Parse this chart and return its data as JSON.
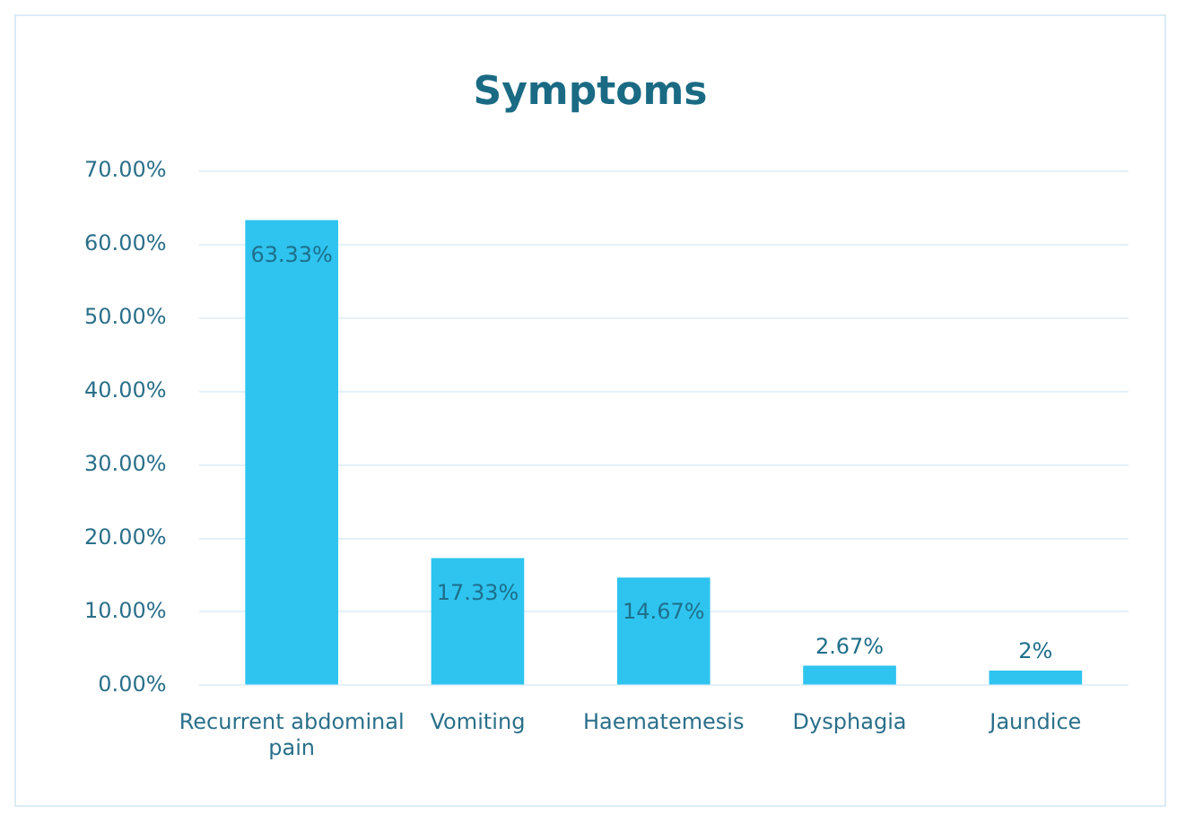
{
  "chart_data": {
    "type": "bar",
    "title": "Symptoms",
    "categories": [
      "Recurrent abdominal pain",
      "Vomiting",
      "Haematemesis",
      "Dysphagia",
      "Jaundice"
    ],
    "values": [
      63.33,
      17.33,
      14.67,
      2.67,
      2
    ],
    "value_labels": [
      "63.33%",
      "17.33%",
      "14.67%",
      "2.67%",
      "2%"
    ],
    "color": "#2ec4ef",
    "ylim": [
      0,
      70
    ],
    "yticks": [
      {
        "value": 0,
        "label": "0.00%"
      },
      {
        "value": 10,
        "label": "10.00%"
      },
      {
        "value": 20,
        "label": "20.00%"
      },
      {
        "value": 30,
        "label": "30.00%"
      },
      {
        "value": 40,
        "label": "40.00%"
      },
      {
        "value": 50,
        "label": "50.00%"
      },
      {
        "value": 60,
        "label": "60.00%"
      },
      {
        "value": 70,
        "label": "70.00%"
      }
    ],
    "grid": "y",
    "legend": false
  }
}
